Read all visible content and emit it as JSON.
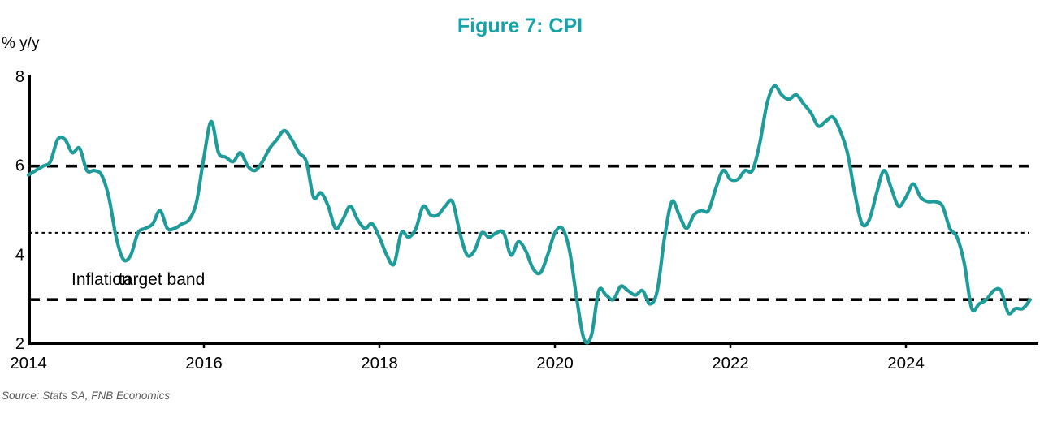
{
  "chart_data": {
    "type": "line",
    "title": "Figure 7: CPI",
    "ylabel": "% y/y",
    "ylim": [
      2,
      8
    ],
    "yticks": [
      8,
      6,
      4,
      2
    ],
    "xticks": [
      2014,
      2016,
      2018,
      2020,
      2022,
      2024
    ],
    "x_start_year": 2014,
    "frequency": "monthly",
    "grid": "off",
    "legend": "none",
    "annotation": {
      "part1": "Inflation",
      "part2": "target band"
    },
    "source": "Source: Stats SA, FNB Economics",
    "reference_lines": [
      {
        "name": "upper-target",
        "value": 6,
        "style": "dashed"
      },
      {
        "name": "target-midpoint",
        "value": 4.5,
        "style": "dotted"
      },
      {
        "name": "lower-target",
        "value": 3,
        "style": "dashed"
      }
    ],
    "series": [
      {
        "name": "CPI % y/y",
        "color": "#1F9C99",
        "values": [
          5.8,
          5.9,
          6.0,
          6.1,
          6.6,
          6.6,
          6.3,
          6.4,
          5.9,
          5.9,
          5.8,
          5.3,
          4.4,
          3.9,
          4.0,
          4.5,
          4.6,
          4.7,
          5.0,
          4.6,
          4.6,
          4.7,
          4.8,
          5.2,
          6.2,
          7.0,
          6.3,
          6.2,
          6.1,
          6.3,
          6.0,
          5.9,
          6.1,
          6.4,
          6.6,
          6.8,
          6.6,
          6.3,
          6.1,
          5.3,
          5.4,
          5.1,
          4.6,
          4.8,
          5.1,
          4.8,
          4.6,
          4.7,
          4.4,
          4.0,
          3.8,
          4.5,
          4.4,
          4.6,
          5.1,
          4.9,
          4.9,
          5.1,
          5.2,
          4.5,
          4.0,
          4.1,
          4.5,
          4.4,
          4.5,
          4.5,
          4.0,
          4.3,
          4.1,
          3.7,
          3.6,
          4.0,
          4.5,
          4.6,
          4.1,
          3.0,
          2.1,
          2.2,
          3.2,
          3.1,
          3.0,
          3.3,
          3.2,
          3.1,
          3.2,
          2.9,
          3.2,
          4.4,
          5.2,
          4.9,
          4.6,
          4.9,
          5.0,
          5.0,
          5.5,
          5.9,
          5.7,
          5.7,
          5.9,
          5.9,
          6.5,
          7.4,
          7.8,
          7.6,
          7.5,
          7.6,
          7.4,
          7.2,
          6.9,
          7.0,
          7.1,
          6.8,
          6.3,
          5.4,
          4.7,
          4.8,
          5.4,
          5.9,
          5.5,
          5.1,
          5.3,
          5.6,
          5.3,
          5.2,
          5.2,
          5.1,
          4.6,
          4.4,
          3.8,
          2.8,
          2.9,
          3.0,
          3.2,
          3.2,
          2.7,
          2.8,
          2.8,
          3.0
        ]
      }
    ],
    "colors": {
      "title": "#14A3A9",
      "line": "#1F9C99",
      "axis": "#000000",
      "reference": "#000000",
      "source_text": "#595959"
    }
  }
}
